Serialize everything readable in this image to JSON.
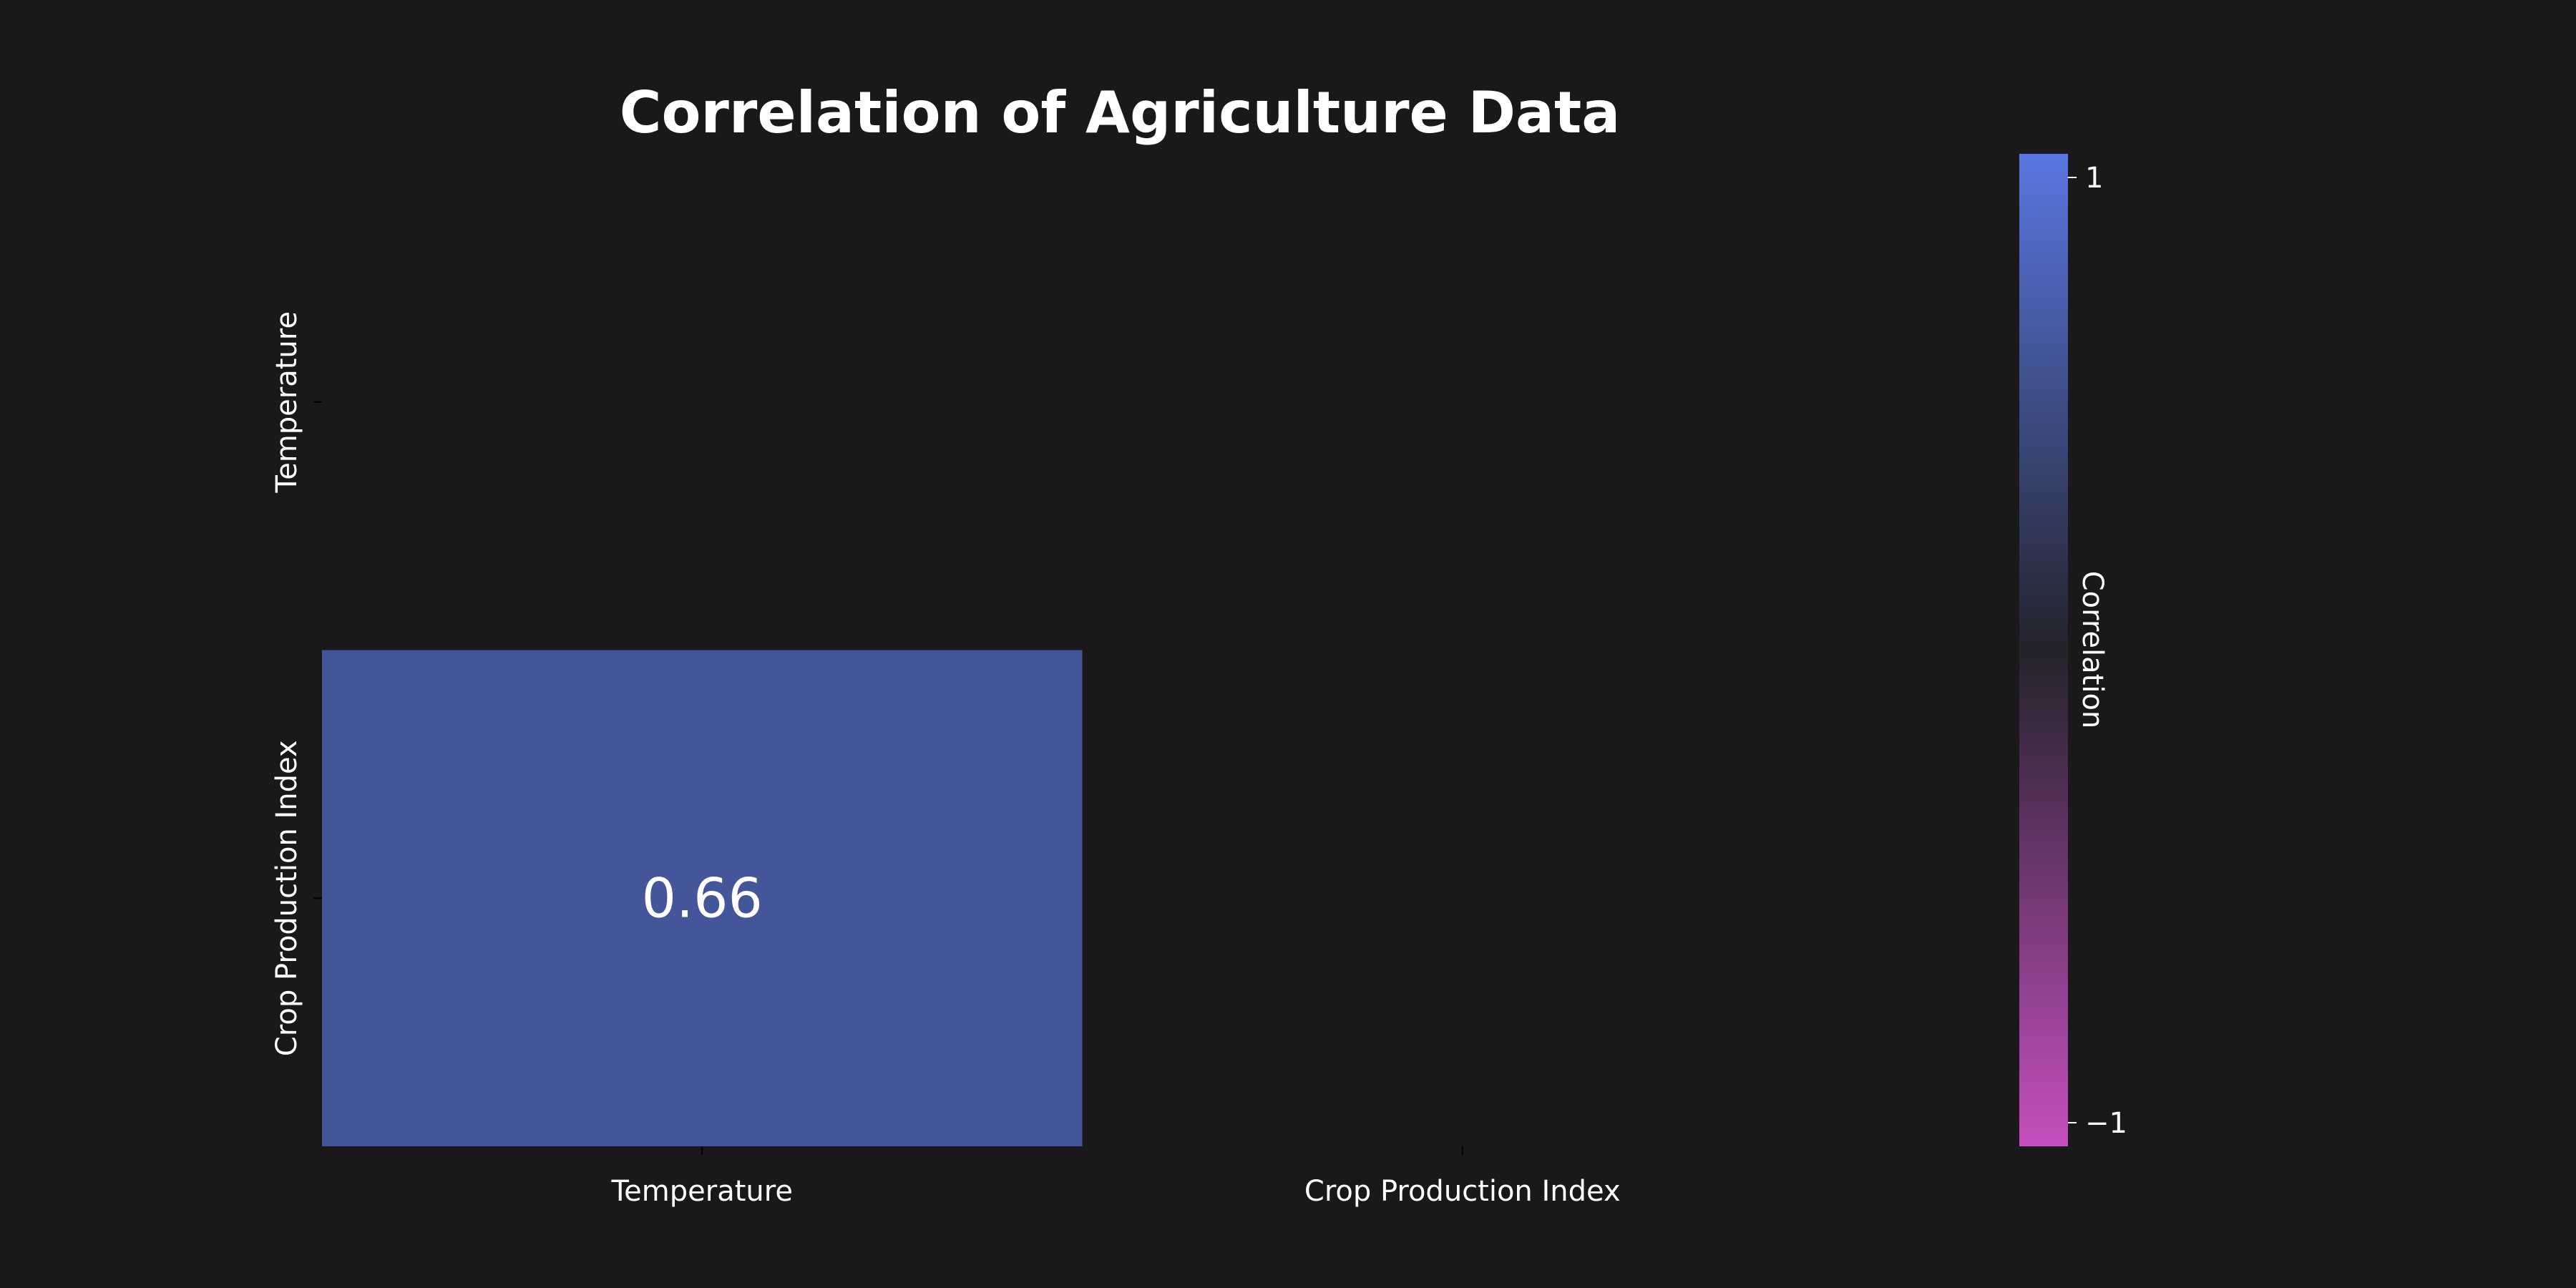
{
  "chart_data": {
    "type": "heatmap",
    "title": "Correlation of Agriculture Data",
    "x_categories": [
      "Temperature",
      "Crop Production Index"
    ],
    "y_categories": [
      "Temperature",
      "Crop Production Index"
    ],
    "cells": [
      {
        "row": 1,
        "col": 0,
        "value": 0.66,
        "label": "0.66"
      }
    ],
    "masked": "upper-triangle-and-diagonal",
    "colorbar": {
      "label": "Correlation",
      "range": [
        -1,
        1
      ],
      "ticks": [
        1,
        -1
      ],
      "tick_labels": [
        "1",
        "−1"
      ],
      "colors": {
        "min": "#c44fbe",
        "mid": "#23232b",
        "max": "#5a77e2"
      }
    },
    "background": "#1b181c",
    "cell_color": "#45559a"
  }
}
